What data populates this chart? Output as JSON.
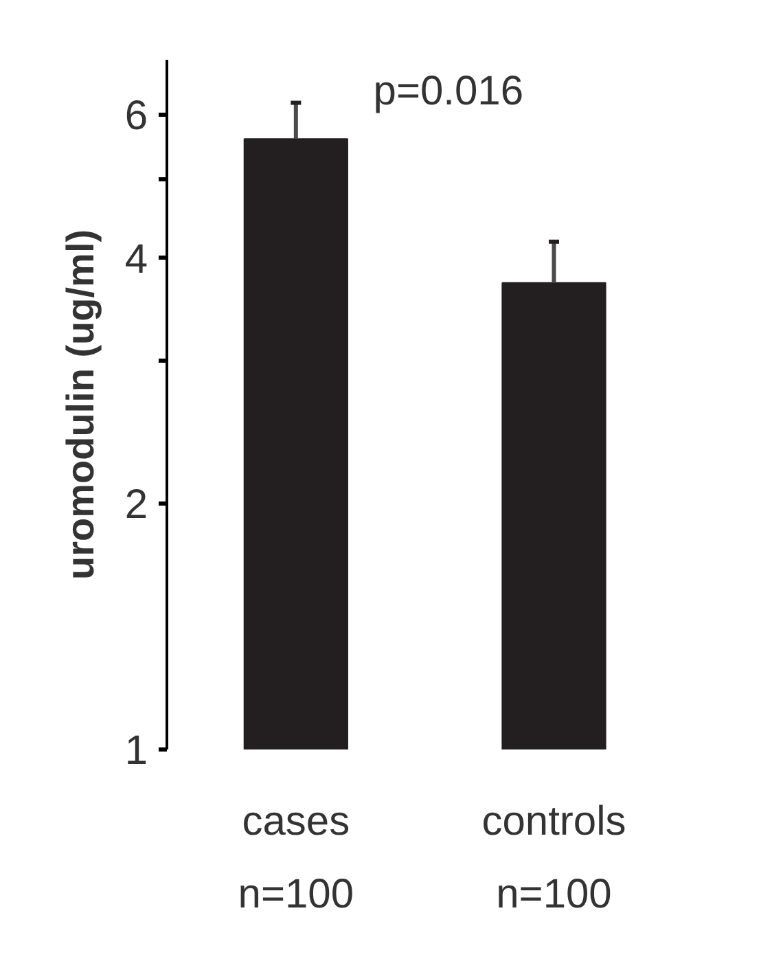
{
  "chart_data": {
    "type": "bar",
    "ylabel": "uromodulin (ug/ml)",
    "categories": [
      "cases\nn=100",
      "controls\nn=100"
    ],
    "values": [
      5.6,
      3.73
    ],
    "errors": [
      [
        5.6,
        6.2
      ],
      [
        3.73,
        4.19
      ]
    ],
    "color": "#231f20",
    "log": true,
    "ylim": [
      1,
      7
    ],
    "yticks": [
      1,
      2,
      {
        "value": 3,
        "label": null
      },
      4,
      {
        "value": 5,
        "label": null
      },
      6
    ],
    "annotations": [
      "p=0.016"
    ],
    "grid": false
  }
}
